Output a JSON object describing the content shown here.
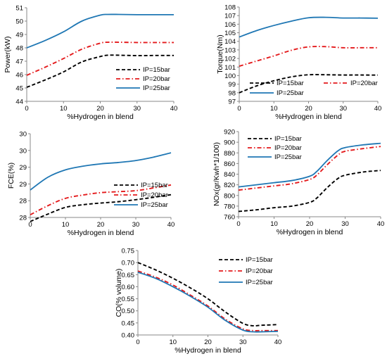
{
  "chart_data": [
    {
      "type": "line",
      "xlabel": "%Hydrogen in blend",
      "ylabel": "Power(kW)",
      "xlim": [
        0,
        40
      ],
      "ylim": [
        44,
        51
      ],
      "xticks": [
        "0",
        "10",
        "20",
        "30",
        "40"
      ],
      "yticks": [
        "44",
        "45",
        "46",
        "47",
        "48",
        "49",
        "50",
        "51"
      ],
      "legend_position": "bottom-right",
      "grid": false,
      "series": [
        {
          "name": "IP=15bar",
          "color": "#000000",
          "style": "dashed",
          "x": [
            0,
            5,
            10,
            15,
            20,
            22,
            25,
            30,
            35,
            40
          ],
          "y": [
            45.05,
            45.6,
            46.2,
            46.95,
            47.35,
            47.45,
            47.45,
            47.42,
            47.43,
            47.43
          ]
        },
        {
          "name": "IP=20bar",
          "color": "#e41a1c",
          "style": "dashdot",
          "x": [
            0,
            5,
            10,
            15,
            20,
            22,
            25,
            30,
            35,
            40
          ],
          "y": [
            45.95,
            46.55,
            47.2,
            47.9,
            48.35,
            48.42,
            48.42,
            48.4,
            48.4,
            48.4
          ]
        },
        {
          "name": "IP=25bar",
          "color": "#1f77b4",
          "style": "solid",
          "x": [
            0,
            5,
            10,
            15,
            20,
            22,
            25,
            30,
            35,
            40
          ],
          "y": [
            48.0,
            48.55,
            49.2,
            50.0,
            50.45,
            50.5,
            50.5,
            50.48,
            50.48,
            50.48
          ]
        }
      ]
    },
    {
      "type": "line",
      "xlabel": "%Hydrogen in blend",
      "ylabel": "Torque(Nm)",
      "xlim": [
        0,
        40
      ],
      "ylim": [
        97,
        108
      ],
      "xticks": [
        "0",
        "10",
        "20",
        "30",
        "40"
      ],
      "yticks": [
        "97",
        "98",
        "99",
        "100",
        "101",
        "102",
        "103",
        "104",
        "105",
        "106",
        "107",
        "108"
      ],
      "legend_position": "bottom",
      "grid": false,
      "series": [
        {
          "name": "IP=15bar",
          "color": "#000000",
          "style": "dashed",
          "x": [
            0,
            5,
            10,
            15,
            20,
            25,
            30,
            35,
            40
          ],
          "y": [
            98.0,
            98.8,
            99.4,
            99.85,
            100.1,
            100.1,
            100.07,
            100.07,
            100.06
          ]
        },
        {
          "name": "IP=20bar",
          "color": "#e41a1c",
          "style": "dashdot",
          "x": [
            0,
            5,
            10,
            15,
            20,
            25,
            30,
            35,
            40
          ],
          "y": [
            101.1,
            101.7,
            102.3,
            102.95,
            103.35,
            103.38,
            103.25,
            103.25,
            103.25
          ]
        },
        {
          "name": "IP=25bar",
          "color": "#1f77b4",
          "style": "solid",
          "x": [
            0,
            5,
            10,
            15,
            20,
            25,
            30,
            35,
            40
          ],
          "y": [
            104.5,
            105.25,
            105.85,
            106.35,
            106.75,
            106.8,
            106.72,
            106.72,
            106.7
          ]
        }
      ]
    },
    {
      "type": "line",
      "xlabel": "%Hydrogen in blend",
      "ylabel": "FCE(%)",
      "xlim": [
        0,
        40
      ],
      "ylim": [
        28,
        30.5
      ],
      "xticks": [
        "0",
        "10",
        "20",
        "30",
        "40"
      ],
      "yticks": [
        "28",
        "28",
        "29",
        "29",
        "30",
        "30"
      ],
      "legend_position": "bottom-right",
      "grid": false,
      "series": [
        {
          "name": "IP=15bar",
          "color": "#000000",
          "style": "dashed",
          "x": [
            0,
            5,
            10,
            15,
            20,
            25,
            30,
            35,
            40
          ],
          "y": [
            27.88,
            28.1,
            28.3,
            28.38,
            28.43,
            28.47,
            28.53,
            28.6,
            28.68
          ]
        },
        {
          "name": "IP=20bar",
          "color": "#e41a1c",
          "style": "dashdot",
          "x": [
            0,
            5,
            10,
            15,
            20,
            25,
            30,
            35,
            40
          ],
          "y": [
            28.08,
            28.35,
            28.57,
            28.67,
            28.74,
            28.77,
            28.8,
            28.88,
            28.97
          ]
        },
        {
          "name": "IP=25bar",
          "color": "#1f77b4",
          "style": "solid",
          "x": [
            0,
            5,
            10,
            15,
            20,
            25,
            30,
            35,
            40
          ],
          "y": [
            28.82,
            29.2,
            29.42,
            29.53,
            29.6,
            29.64,
            29.7,
            29.8,
            29.93
          ]
        }
      ]
    },
    {
      "type": "line",
      "xlabel": "%Hydrogen in blend",
      "ylabel": "NOx(gr/Kwh*1/100)",
      "xlim": [
        0,
        40
      ],
      "ylim": [
        760,
        920
      ],
      "xticks": [
        "0",
        "10",
        "20",
        "30",
        "40"
      ],
      "yticks": [
        "760",
        "780",
        "800",
        "820",
        "840",
        "860",
        "880",
        "900",
        "920"
      ],
      "legend_position": "top-left",
      "grid": false,
      "series": [
        {
          "name": "IP=15bar",
          "color": "#000000",
          "style": "dashed",
          "x": [
            0,
            5,
            10,
            15,
            20,
            22,
            25,
            28,
            30,
            35,
            40
          ],
          "y": [
            770,
            773,
            777,
            780,
            787,
            795,
            815,
            832,
            838,
            844,
            847
          ]
        },
        {
          "name": "IP=20bar",
          "color": "#e41a1c",
          "style": "dashdot",
          "x": [
            0,
            5,
            10,
            15,
            20,
            22,
            25,
            28,
            30,
            35,
            40
          ],
          "y": [
            810,
            814,
            818,
            822,
            830,
            838,
            858,
            876,
            883,
            888,
            892
          ]
        },
        {
          "name": "IP=25bar",
          "color": "#1f77b4",
          "style": "solid",
          "x": [
            0,
            5,
            10,
            15,
            20,
            22,
            25,
            28,
            30,
            35,
            40
          ],
          "y": [
            816,
            820,
            824,
            828,
            836,
            845,
            866,
            884,
            890,
            895,
            898
          ]
        }
      ]
    },
    {
      "type": "line",
      "xlabel": "%Hydrogen in blend",
      "ylabel": "CO(% volume)",
      "xlim": [
        0,
        40
      ],
      "ylim": [
        0.4,
        0.75
      ],
      "xticks": [
        "0",
        "10",
        "20",
        "30",
        "40"
      ],
      "yticks": [
        "0.40",
        "0.45",
        "0.50",
        "0.55",
        "0.60",
        "0.65",
        "0.70",
        "0.75"
      ],
      "legend_position": "top-right",
      "grid": false,
      "series": [
        {
          "name": "IP=15bar",
          "color": "#000000",
          "style": "dashed",
          "x": [
            0,
            5,
            10,
            15,
            20,
            25,
            30,
            33,
            35,
            40
          ],
          "y": [
            0.7,
            0.67,
            0.635,
            0.595,
            0.55,
            0.495,
            0.448,
            0.438,
            0.44,
            0.443
          ]
        },
        {
          "name": "IP=20bar",
          "color": "#e41a1c",
          "style": "dashdot",
          "x": [
            0,
            5,
            10,
            15,
            20,
            25,
            30,
            33,
            35,
            40
          ],
          "y": [
            0.665,
            0.64,
            0.607,
            0.565,
            0.52,
            0.465,
            0.425,
            0.418,
            0.418,
            0.418
          ]
        },
        {
          "name": "IP=25bar",
          "color": "#1f77b4",
          "style": "solid",
          "x": [
            0,
            5,
            10,
            15,
            20,
            25,
            30,
            33,
            35,
            40
          ],
          "y": [
            0.66,
            0.635,
            0.6,
            0.56,
            0.515,
            0.46,
            0.42,
            0.413,
            0.413,
            0.415
          ]
        }
      ]
    }
  ]
}
